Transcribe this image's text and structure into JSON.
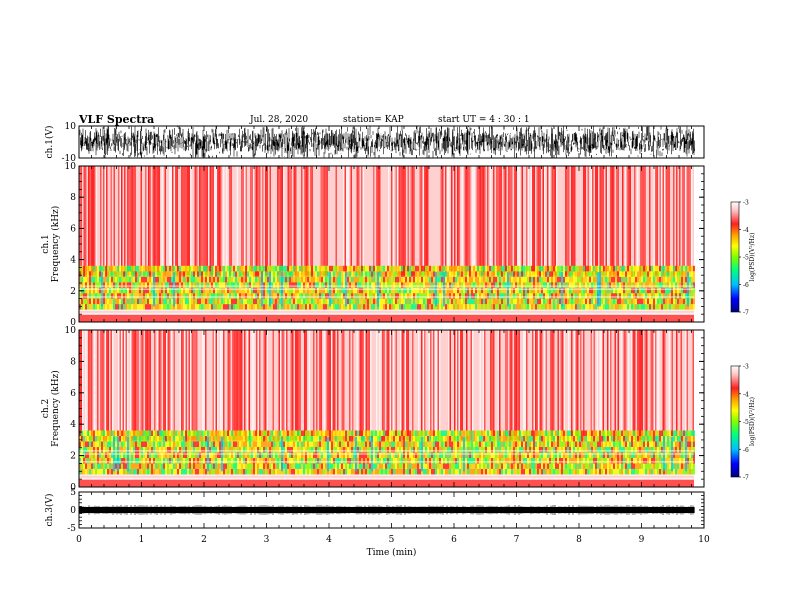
{
  "header": {
    "title": "VLF Spectra",
    "date": "Jul. 28, 2020",
    "station": "station= KAP",
    "start": "start UT =  4 : 30 : 1"
  },
  "colors": {
    "waveform": "#000000",
    "colorscale": [
      "#000080",
      "#0000ff",
      "#00c0ff",
      "#00ff80",
      "#80ff00",
      "#ffff00",
      "#ffa000",
      "#ff2020",
      "#ffc0c0",
      "#ffffff"
    ]
  },
  "chart_data": [
    {
      "type": "line",
      "panel": "ch1-waveform",
      "ylabel": "ch.1(V)",
      "ylim": [
        -10,
        10
      ],
      "yticks": [
        "10",
        "-10"
      ],
      "xlim": [
        0,
        10
      ],
      "x_extent": [
        0,
        9.85
      ],
      "amplitude_range": [
        -10,
        10
      ]
    },
    {
      "type": "heatmap",
      "panel": "ch1-spectrogram",
      "ylabel": "ch.1\nFrequency (kHz)",
      "ylim": [
        0,
        10
      ],
      "yticks": [
        "0",
        "2",
        "4",
        "6",
        "8",
        "10"
      ],
      "xlim": [
        0,
        10
      ],
      "colorbar": {
        "label": "log(PSD)(V²/Hz)",
        "range": [
          -7,
          -3
        ],
        "ticks": [
          "-3",
          "-4",
          "-5",
          "-6",
          "-7"
        ]
      }
    },
    {
      "type": "heatmap",
      "panel": "ch2-spectrogram",
      "ylabel": "ch.2\nFrequency (kHz)",
      "ylim": [
        0,
        10
      ],
      "yticks": [
        "0",
        "2",
        "4",
        "6",
        "8",
        "10"
      ],
      "xlim": [
        0,
        10
      ],
      "colorbar": {
        "label": "log(PSD)(V²/Hz)",
        "range": [
          -7,
          -3
        ],
        "ticks": [
          "-3",
          "-4",
          "-5",
          "-6",
          "-7"
        ]
      }
    },
    {
      "type": "line",
      "panel": "ch3-waveform",
      "ylabel": "ch.3(V)",
      "ylim": [
        -5,
        5
      ],
      "yticks": [
        "5",
        "0",
        "-5"
      ],
      "xlim": [
        0,
        10
      ],
      "x_extent": [
        0,
        9.85
      ],
      "xlabel": "Time (min)",
      "xticks": [
        "0",
        "1",
        "2",
        "3",
        "4",
        "5",
        "6",
        "7",
        "8",
        "9",
        "10"
      ]
    }
  ]
}
